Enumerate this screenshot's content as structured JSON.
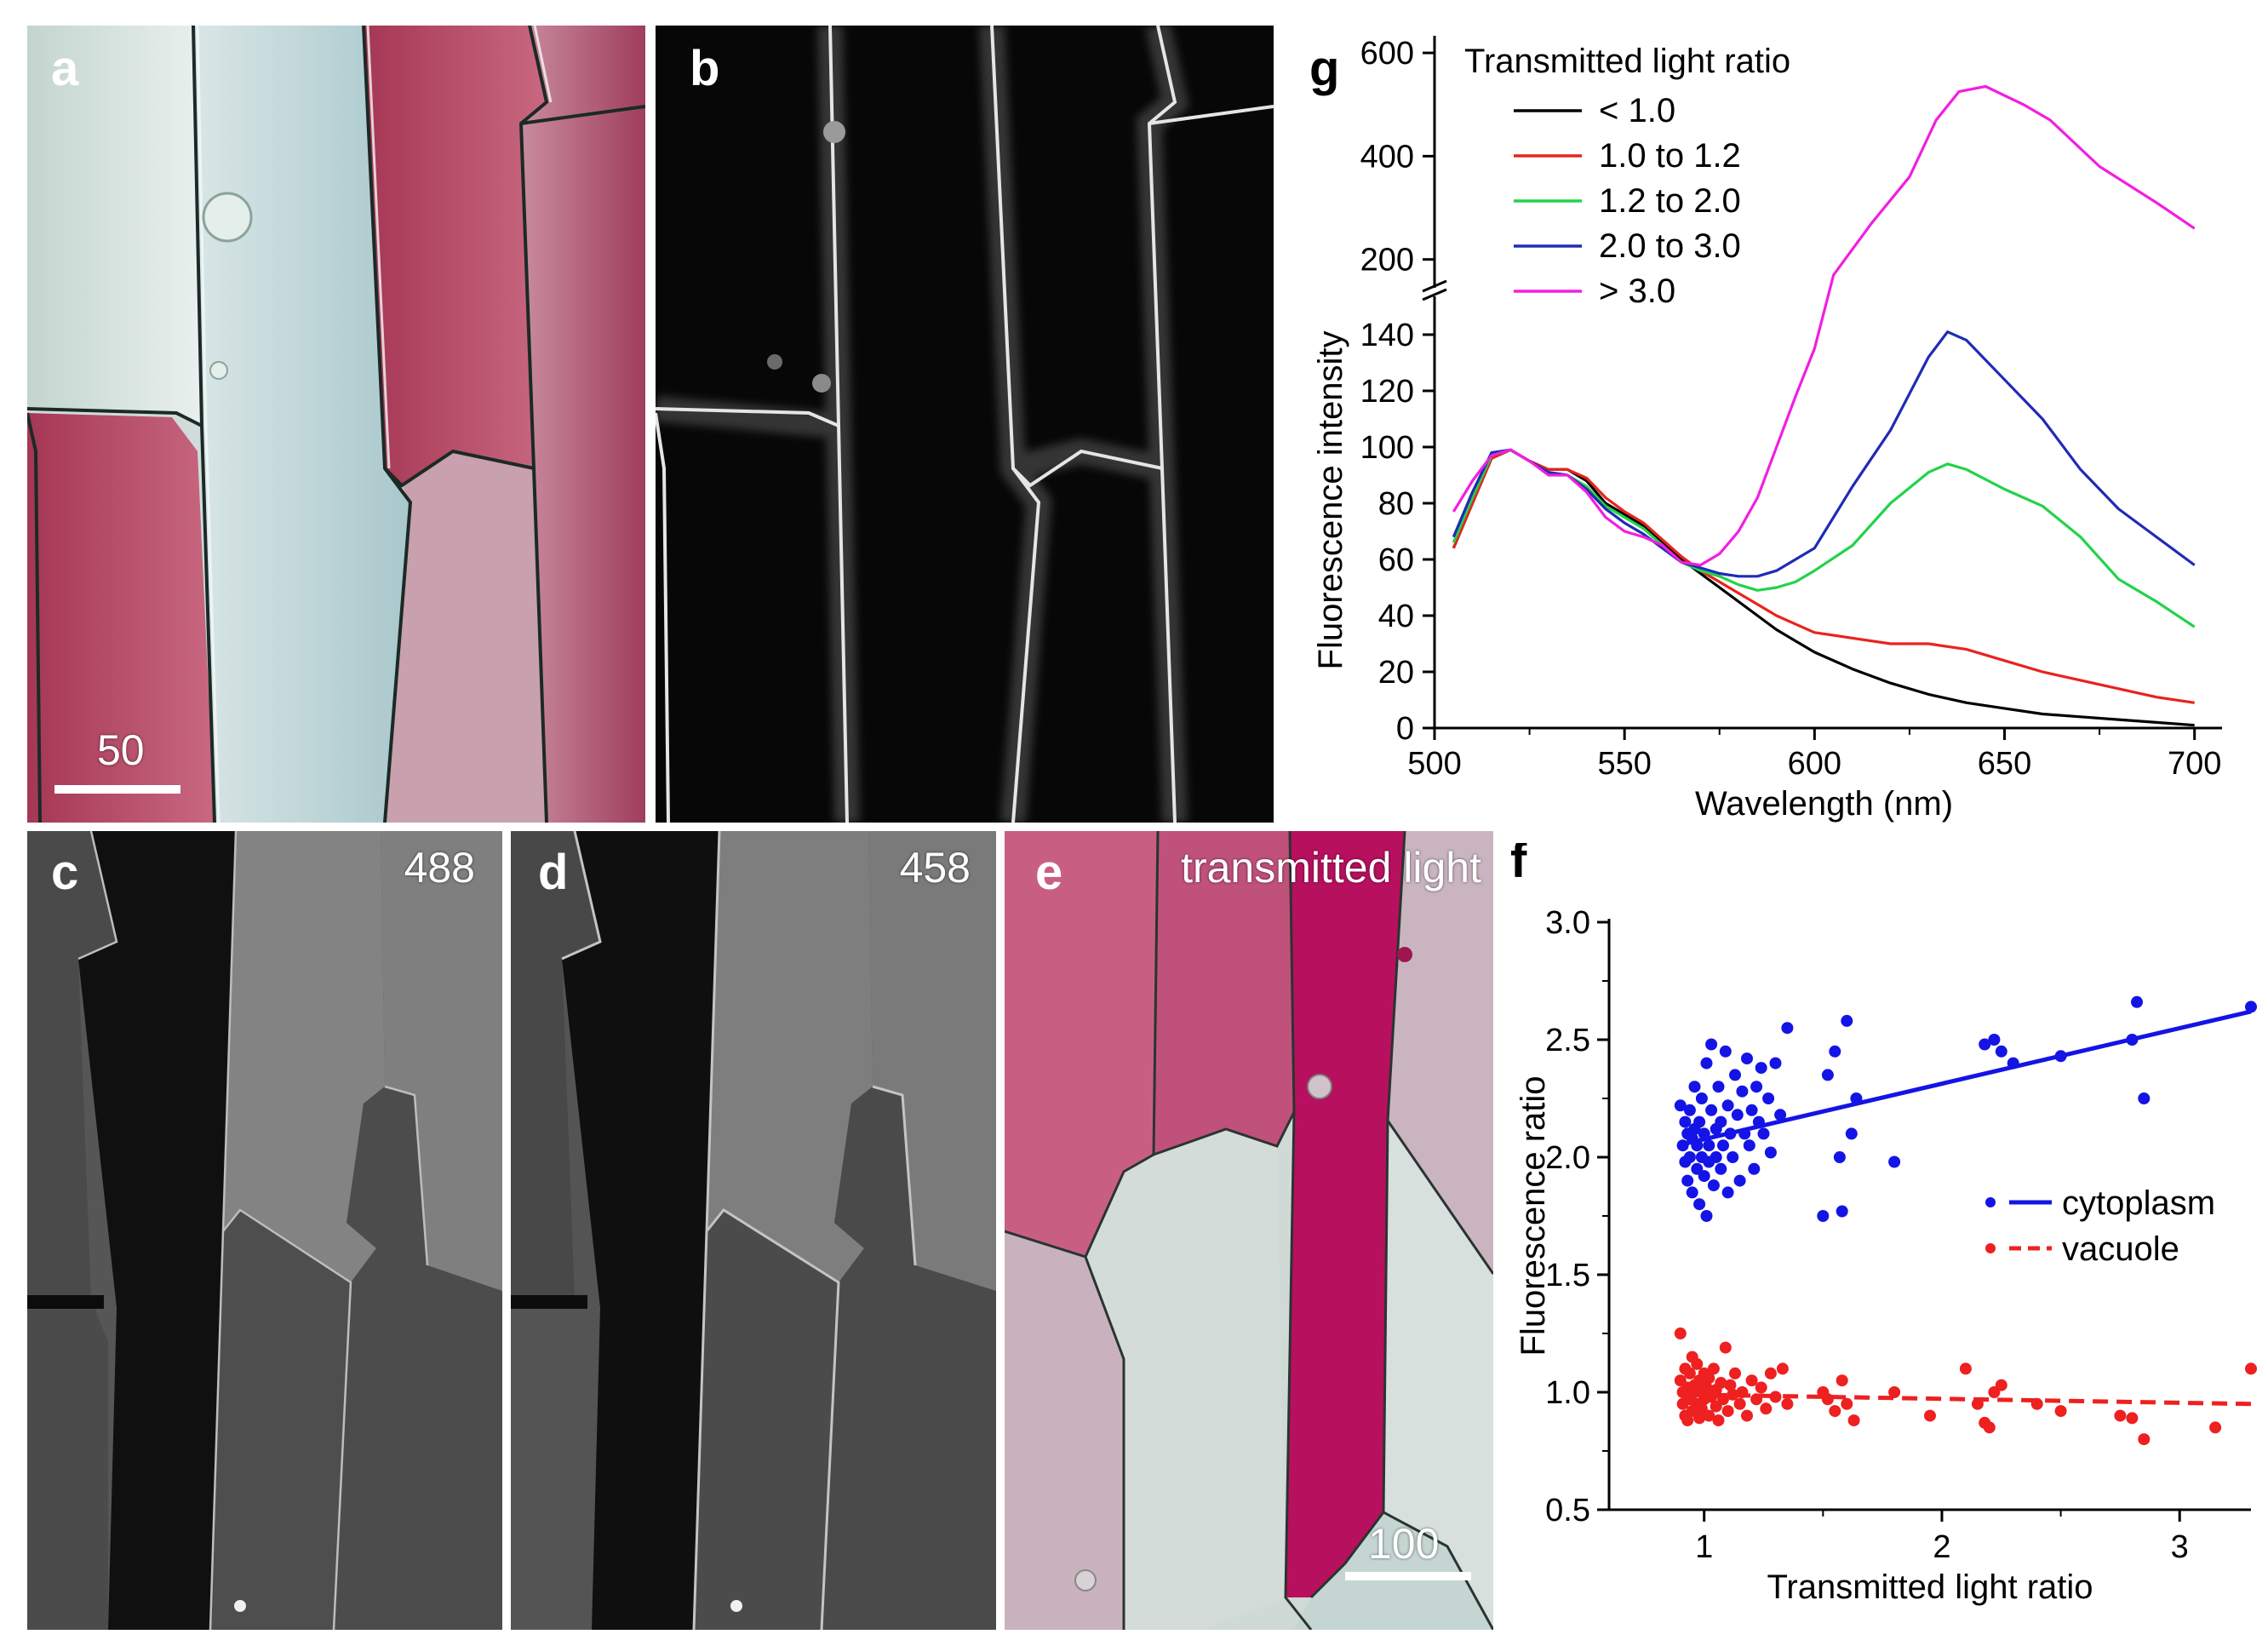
{
  "panels": {
    "a": {
      "label": "a",
      "scale_text": "50"
    },
    "b": {
      "label": "b"
    },
    "c": {
      "label": "c",
      "tag": "488"
    },
    "d": {
      "label": "d",
      "tag": "458"
    },
    "e": {
      "label": "e",
      "tag": "transmitted light",
      "scale_text": "100"
    }
  },
  "colors": {
    "purple": "#b0405c",
    "pale": "#dfe8e6",
    "cell_wall": "#1f2a28"
  },
  "chart_data": [
    {
      "id": "g",
      "label": "g",
      "type": "line",
      "title": "",
      "legend_title": "Transmitted light ratio",
      "legend_position": "top-left",
      "xlabel": "Wavelength (nm)",
      "ylabel": "Fluorescence intensity",
      "xlim": [
        500,
        705
      ],
      "ylim_lower": [
        0,
        150
      ],
      "ylim_upper": [
        150,
        620
      ],
      "axis_break": true,
      "x_ticks": [
        500,
        550,
        600,
        650,
        700
      ],
      "y_ticks_lower": [
        0,
        20,
        40,
        60,
        80,
        100,
        120,
        140
      ],
      "y_ticks_upper": [
        200,
        400,
        600
      ],
      "series": [
        {
          "name": "< 1.0",
          "color": "#000000",
          "x": [
            505,
            510,
            515,
            520,
            525,
            530,
            535,
            540,
            545,
            550,
            555,
            560,
            565,
            570,
            575,
            580,
            585,
            590,
            595,
            600,
            610,
            620,
            630,
            640,
            650,
            660,
            670,
            680,
            690,
            700
          ],
          "y": [
            64,
            80,
            96,
            99,
            95,
            92,
            92,
            88,
            80,
            76,
            72,
            66,
            60,
            55,
            50,
            45,
            40,
            35,
            31,
            27,
            21,
            16,
            12,
            9,
            7,
            5,
            4,
            3,
            2,
            1
          ]
        },
        {
          "name": "1.0 to 1.2",
          "color": "#e8231d",
          "x": [
            505,
            510,
            515,
            520,
            525,
            530,
            535,
            540,
            545,
            550,
            555,
            560,
            565,
            570,
            575,
            580,
            585,
            590,
            595,
            600,
            610,
            620,
            630,
            635,
            640,
            650,
            660,
            670,
            680,
            690,
            700
          ],
          "y": [
            64,
            80,
            96,
            99,
            95,
            92,
            92,
            89,
            82,
            77,
            73,
            67,
            61,
            56,
            52,
            48,
            44,
            40,
            37,
            34,
            32,
            30,
            30,
            29,
            28,
            24,
            20,
            17,
            14,
            11,
            9
          ]
        },
        {
          "name": "1.2 to 2.0",
          "color": "#22d34a",
          "x": [
            505,
            510,
            515,
            520,
            525,
            530,
            535,
            540,
            545,
            550,
            555,
            560,
            565,
            570,
            575,
            580,
            585,
            590,
            595,
            600,
            610,
            620,
            630,
            635,
            640,
            650,
            660,
            670,
            680,
            690,
            700
          ],
          "y": [
            66,
            82,
            97,
            99,
            95,
            91,
            90,
            86,
            79,
            75,
            71,
            65,
            59,
            56,
            54,
            51,
            49,
            50,
            52,
            56,
            65,
            80,
            91,
            94,
            92,
            85,
            79,
            68,
            53,
            45,
            36
          ]
        },
        {
          "name": "2.0 to 3.0",
          "color": "#1f2bb5",
          "x": [
            505,
            510,
            515,
            520,
            525,
            530,
            535,
            540,
            545,
            550,
            555,
            560,
            565,
            570,
            575,
            580,
            585,
            590,
            595,
            600,
            610,
            620,
            630,
            635,
            640,
            650,
            660,
            670,
            680,
            690,
            700
          ],
          "y": [
            68,
            84,
            98,
            99,
            95,
            91,
            90,
            85,
            78,
            73,
            69,
            64,
            59,
            57,
            55,
            54,
            54,
            56,
            60,
            64,
            86,
            106,
            132,
            141,
            138,
            124,
            110,
            92,
            78,
            68,
            58
          ]
        },
        {
          "name": "> 3.0",
          "color": "#f21ee0",
          "x": [
            505,
            510,
            515,
            520,
            525,
            530,
            535,
            540,
            545,
            550,
            555,
            560,
            565,
            570,
            575,
            580,
            585,
            590,
            595,
            600,
            605,
            615,
            625,
            632,
            638,
            645,
            655,
            662,
            675,
            690,
            700
          ],
          "y": [
            77,
            88,
            97,
            99,
            95,
            90,
            90,
            84,
            75,
            70,
            68,
            65,
            59,
            58,
            62,
            70,
            82,
            100,
            118,
            135,
            170,
            270,
            360,
            470,
            525,
            535,
            500,
            470,
            380,
            310,
            260
          ]
        }
      ]
    },
    {
      "id": "f",
      "label": "f",
      "type": "scatter",
      "title": "",
      "xlabel": "Transmitted light ratio",
      "ylabel": "Fluorescence ratio",
      "xlim": [
        0.6,
        3.3
      ],
      "ylim": [
        0.5,
        3.0
      ],
      "x_ticks": [
        1,
        2,
        3
      ],
      "y_ticks": [
        0.5,
        1.0,
        1.5,
        2.0,
        2.5,
        3.0
      ],
      "legend_position": "right",
      "series": [
        {
          "name": "cytoplasm",
          "color": "#1414e6",
          "fit": [
            [
              0.93,
              2.06
            ],
            [
              3.3,
              2.62
            ]
          ],
          "fit_style": "solid",
          "points": [
            [
              0.9,
              2.22
            ],
            [
              0.91,
              2.05
            ],
            [
              0.92,
              1.98
            ],
            [
              0.92,
              2.15
            ],
            [
              0.93,
              2.1
            ],
            [
              0.93,
              1.9
            ],
            [
              0.94,
              2.0
            ],
            [
              0.94,
              2.2
            ],
            [
              0.95,
              2.08
            ],
            [
              0.95,
              1.85
            ],
            [
              0.96,
              2.12
            ],
            [
              0.96,
              2.3
            ],
            [
              0.97,
              1.95
            ],
            [
              0.97,
              2.05
            ],
            [
              0.98,
              1.8
            ],
            [
              0.98,
              2.15
            ],
            [
              0.99,
              2.0
            ],
            [
              0.99,
              2.25
            ],
            [
              1.0,
              1.92
            ],
            [
              1.0,
              2.1
            ],
            [
              1.01,
              1.75
            ],
            [
              1.01,
              2.4
            ],
            [
              1.02,
              2.05
            ],
            [
              1.02,
              1.98
            ],
            [
              1.03,
              2.2
            ],
            [
              1.03,
              2.48
            ],
            [
              1.04,
              1.88
            ],
            [
              1.05,
              2.12
            ],
            [
              1.05,
              2.0
            ],
            [
              1.06,
              2.3
            ],
            [
              1.07,
              1.95
            ],
            [
              1.07,
              2.15
            ],
            [
              1.08,
              2.05
            ],
            [
              1.09,
              2.45
            ],
            [
              1.1,
              1.85
            ],
            [
              1.1,
              2.22
            ],
            [
              1.11,
              2.1
            ],
            [
              1.12,
              2.0
            ],
            [
              1.13,
              2.35
            ],
            [
              1.14,
              2.18
            ],
            [
              1.15,
              1.9
            ],
            [
              1.16,
              2.28
            ],
            [
              1.17,
              2.1
            ],
            [
              1.18,
              2.42
            ],
            [
              1.19,
              2.05
            ],
            [
              1.2,
              2.2
            ],
            [
              1.21,
              1.95
            ],
            [
              1.22,
              2.3
            ],
            [
              1.23,
              2.15
            ],
            [
              1.24,
              2.38
            ],
            [
              1.25,
              2.1
            ],
            [
              1.27,
              2.25
            ],
            [
              1.28,
              2.02
            ],
            [
              1.3,
              2.4
            ],
            [
              1.32,
              2.18
            ],
            [
              1.35,
              2.55
            ],
            [
              1.5,
              1.75
            ],
            [
              1.52,
              2.35
            ],
            [
              1.55,
              2.45
            ],
            [
              1.57,
              2.0
            ],
            [
              1.58,
              1.77
            ],
            [
              1.6,
              2.58
            ],
            [
              1.62,
              2.1
            ],
            [
              1.64,
              2.25
            ],
            [
              1.8,
              1.98
            ],
            [
              2.18,
              2.48
            ],
            [
              2.22,
              2.5
            ],
            [
              2.25,
              2.45
            ],
            [
              2.3,
              2.4
            ],
            [
              2.5,
              2.43
            ],
            [
              2.8,
              2.5
            ],
            [
              2.82,
              2.66
            ],
            [
              2.85,
              2.25
            ],
            [
              3.3,
              2.64
            ]
          ]
        },
        {
          "name": "vacuole",
          "color": "#ee2020",
          "fit": [
            [
              0.93,
              0.99
            ],
            [
              3.3,
              0.95
            ]
          ],
          "fit_style": "dashed",
          "points": [
            [
              0.9,
              1.25
            ],
            [
              0.9,
              1.05
            ],
            [
              0.91,
              0.95
            ],
            [
              0.91,
              1.0
            ],
            [
              0.92,
              0.9
            ],
            [
              0.92,
              1.1
            ],
            [
              0.93,
              1.02
            ],
            [
              0.93,
              0.88
            ],
            [
              0.94,
              1.08
            ],
            [
              0.94,
              0.97
            ],
            [
              0.95,
              1.15
            ],
            [
              0.95,
              0.92
            ],
            [
              0.96,
              1.03
            ],
            [
              0.96,
              1.0
            ],
            [
              0.97,
              0.95
            ],
            [
              0.97,
              1.12
            ],
            [
              0.98,
              0.89
            ],
            [
              0.98,
              1.05
            ],
            [
              0.99,
              1.0
            ],
            [
              0.99,
              0.93
            ],
            [
              1.0,
              1.08
            ],
            [
              1.0,
              0.97
            ],
            [
              1.01,
              1.02
            ],
            [
              1.02,
              0.9
            ],
            [
              1.02,
              1.06
            ],
            [
              1.03,
              0.98
            ],
            [
              1.04,
              1.1
            ],
            [
              1.05,
              0.94
            ],
            [
              1.05,
              1.01
            ],
            [
              1.06,
              0.88
            ],
            [
              1.07,
              1.04
            ],
            [
              1.08,
              0.97
            ],
            [
              1.09,
              1.19
            ],
            [
              1.1,
              0.92
            ],
            [
              1.11,
              1.03
            ],
            [
              1.12,
              0.99
            ],
            [
              1.13,
              1.08
            ],
            [
              1.15,
              0.95
            ],
            [
              1.16,
              1.0
            ],
            [
              1.18,
              0.9
            ],
            [
              1.2,
              1.05
            ],
            [
              1.22,
              0.97
            ],
            [
              1.24,
              1.02
            ],
            [
              1.26,
              0.93
            ],
            [
              1.28,
              1.08
            ],
            [
              1.3,
              0.98
            ],
            [
              1.33,
              1.1
            ],
            [
              1.35,
              0.95
            ],
            [
              1.5,
              1.0
            ],
            [
              1.52,
              0.97
            ],
            [
              1.55,
              0.92
            ],
            [
              1.58,
              1.05
            ],
            [
              1.6,
              0.95
            ],
            [
              1.63,
              0.88
            ],
            [
              1.8,
              1.0
            ],
            [
              1.95,
              0.9
            ],
            [
              2.1,
              1.1
            ],
            [
              2.15,
              0.95
            ],
            [
              2.18,
              0.87
            ],
            [
              2.2,
              0.85
            ],
            [
              2.22,
              1.0
            ],
            [
              2.25,
              1.03
            ],
            [
              2.4,
              0.95
            ],
            [
              2.5,
              0.92
            ],
            [
              2.75,
              0.9
            ],
            [
              2.8,
              0.89
            ],
            [
              2.85,
              0.8
            ],
            [
              3.15,
              0.85
            ],
            [
              3.3,
              1.1
            ]
          ]
        }
      ]
    }
  ]
}
